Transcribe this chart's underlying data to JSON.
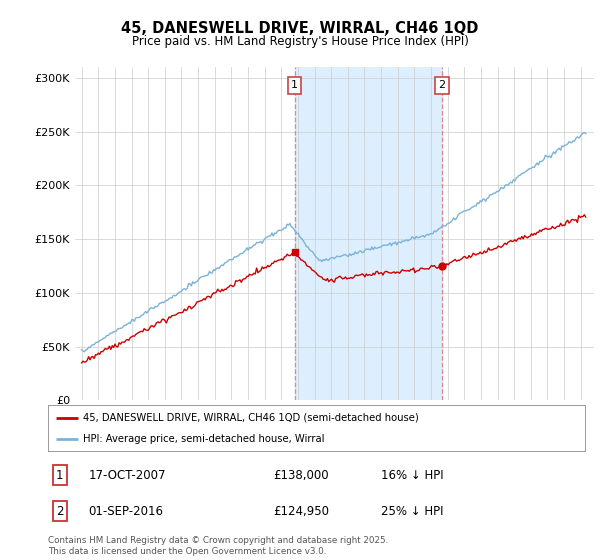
{
  "title": "45, DANESWELL DRIVE, WIRRAL, CH46 1QD",
  "subtitle": "Price paid vs. HM Land Registry's House Price Index (HPI)",
  "ylim": [
    0,
    310000
  ],
  "hpi_color": "#7ab3d8",
  "price_color": "#cc0000",
  "transaction1_year": 2007.8,
  "transaction2_year": 2016.67,
  "legend_label_price": "45, DANESWELL DRIVE, WIRRAL, CH46 1QD (semi-detached house)",
  "legend_label_hpi": "HPI: Average price, semi-detached house, Wirral",
  "transaction1_date": "17-OCT-2007",
  "transaction1_price": "£138,000",
  "transaction1_note": "16% ↓ HPI",
  "transaction2_date": "01-SEP-2016",
  "transaction2_price": "£124,950",
  "transaction2_note": "25% ↓ HPI",
  "footer": "Contains HM Land Registry data © Crown copyright and database right 2025.\nThis data is licensed under the Open Government Licence v3.0.",
  "shade_color": "#ddeeff",
  "dashed_color": "#dd8888",
  "background_color": "#ffffff"
}
